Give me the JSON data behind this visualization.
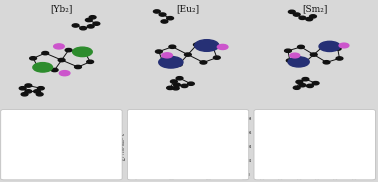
{
  "title_left": "[Yb₂]",
  "title_mid": "[Eu₂]",
  "title_right": "[Sm₂]",
  "bg_color": "#d8d8d8",
  "yb_metal_color": "#2d8c2d",
  "eu_metal_color": "#263075",
  "sm_metal_color": "#263075",
  "halide_color": "#cc55cc",
  "carbon_color": "#111111",
  "yb_nmr_color": "#7a0000",
  "eu_chi_color_orange": "#e8820a",
  "eu_chi_color_black": "#111111",
  "sm_cv_color": "#6622aa",
  "fig_width": 3.78,
  "fig_height": 1.82,
  "dpi": 100
}
